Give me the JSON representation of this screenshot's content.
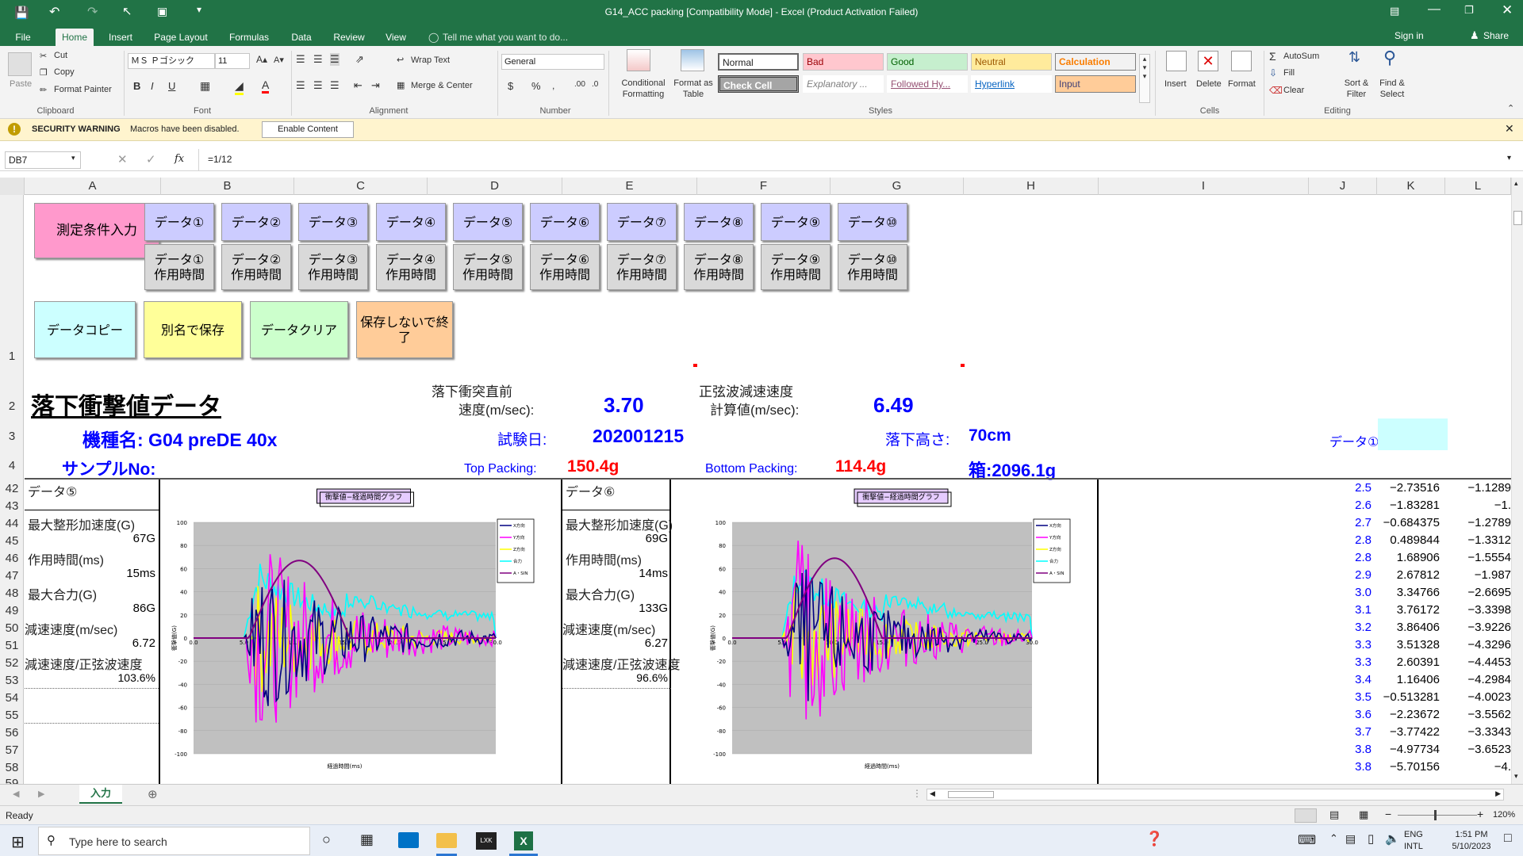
{
  "window": {
    "title": "G14_ACC packing  [Compatibility Mode] - Excel (Product Activation Failed)",
    "sign_in": "Sign in",
    "share": "Share"
  },
  "tabs": [
    "File",
    "Home",
    "Insert",
    "Page Layout",
    "Formulas",
    "Data",
    "Review",
    "View"
  ],
  "tell_me": "Tell me what you want to do...",
  "clipboard": {
    "paste": "Paste",
    "cut": "Cut",
    "copy": "Copy",
    "format_painter": "Format Painter",
    "label": "Clipboard"
  },
  "font": {
    "name": "ＭＳ Ｐゴシック",
    "size": "11",
    "label": "Font"
  },
  "alignment": {
    "wrap": "Wrap Text",
    "merge": "Merge & Center",
    "label": "Alignment"
  },
  "number": {
    "format": "General",
    "label": "Number"
  },
  "styles": {
    "cond": "Conditional Formatting",
    "table": "Format as Table",
    "normal": "Normal",
    "bad": "Bad",
    "good": "Good",
    "neutral": "Neutral",
    "calculation": "Calculation",
    "check": "Check Cell",
    "explanatory": "Explanatory ...",
    "followed": "Followed Hy...",
    "hyperlink": "Hyperlink",
    "input": "Input",
    "label": "Styles"
  },
  "cells": {
    "insert": "Insert",
    "delete": "Delete",
    "format": "Format",
    "label": "Cells"
  },
  "editing": {
    "autosum": "AutoSum",
    "fill": "Fill",
    "clear": "Clear",
    "sort": "Sort & Filter",
    "find": "Find & Select",
    "label": "Editing"
  },
  "security": {
    "title": "SECURITY WARNING",
    "message": "Macros have been disabled.",
    "button": "Enable Content"
  },
  "formula_bar": {
    "name_box": "DB7",
    "formula": "=1/12",
    "fx": "fx"
  },
  "columns": [
    "A",
    "B",
    "C",
    "D",
    "E",
    "F",
    "G",
    "H",
    "I",
    "J",
    "K",
    "L"
  ],
  "rows": [
    "1",
    "2",
    "3",
    "4",
    "42",
    "43",
    "44",
    "45",
    "46",
    "47",
    "48",
    "49",
    "50",
    "51",
    "52",
    "53",
    "54",
    "55",
    "56",
    "57",
    "58",
    "59"
  ],
  "buttons": {
    "cond_input": "測定条件入力",
    "data": [
      "データ①",
      "データ②",
      "データ③",
      "データ④",
      "データ⑤",
      "データ⑥",
      "データ⑦",
      "データ⑧",
      "データ⑨",
      "データ⑩"
    ],
    "act": [
      "データ①\n作用時間",
      "データ②\n作用時間",
      "データ③\n作用時間",
      "データ④\n作用時間",
      "データ⑤\n作用時間",
      "データ⑥\n作用時間",
      "データ⑦\n作用時間",
      "データ⑧\n作用時間",
      "データ⑨\n作用時間",
      "データ⑩\n作用時間"
    ],
    "copy": "データコピー",
    "saveas": "別名で保存",
    "clear": "データクリア",
    "quit": "保存しないで終了"
  },
  "header": {
    "title": "落下衝撃値データ",
    "vel_label1": "落下衝突直前",
    "vel_label2": "速度(m/sec):",
    "vel_value": "3.70",
    "sine_label1": "正弦波減速速度",
    "sine_label2": "計算値(m/sec):",
    "sine_value": "6.49",
    "model": "機種名:  G04 preDE   40x",
    "test_date_label": "試験日:",
    "test_date": "202001215",
    "drop_label": "落下高さ:",
    "drop_value": "70cm",
    "data_tag": "データ①",
    "sample": "サンプルNo:",
    "top_label": "Top Packing:",
    "top_value": "150.4g",
    "bottom_label": "Bottom Packing:",
    "bottom_value": "114.4g",
    "box": "箱:2096.1g"
  },
  "panels": [
    {
      "title": "データ⑤",
      "max_acc_label": "最大整形加速度(G)",
      "max_acc": "67G",
      "time_label": "作用時間(ms)",
      "time": "15ms",
      "max_force_label": "最大合力(G)",
      "max_force": "86G",
      "decel_label": "減速速度(m/sec)",
      "decel": "6.72",
      "ratio_label": "減速速度/正弦波速度",
      "ratio": "103.6%",
      "chart_title": "衝撃値−経過時間グラフ"
    },
    {
      "title": "データ⑥",
      "max_acc_label": "最大整形加速度(G)",
      "max_acc": "69G",
      "time_label": "作用時間(ms)",
      "time": "14ms",
      "max_force_label": "最大合力(G)",
      "max_force": "133G",
      "decel_label": "減速速度(m/sec)",
      "decel": "6.27",
      "ratio_label": "減速速度/正弦波速度",
      "ratio": "96.6%",
      "chart_title": "衝撃値−経過時間グラフ"
    }
  ],
  "right_values": [
    [
      "2.5",
      "−2.73516",
      "−1.1289"
    ],
    [
      "2.6",
      "−1.83281",
      "−1."
    ],
    [
      "2.7",
      "−0.684375",
      "−1.2789"
    ],
    [
      "2.8",
      "0.489844",
      "−1.3312"
    ],
    [
      "2.8",
      "1.68906",
      "−1.5554"
    ],
    [
      "2.9",
      "2.67812",
      "−1.987"
    ],
    [
      "3.0",
      "3.34766",
      "−2.6695"
    ],
    [
      "3.1",
      "3.76172",
      "−3.3398"
    ],
    [
      "3.2",
      "3.86406",
      "−3.9226"
    ],
    [
      "3.3",
      "3.51328",
      "−4.3296"
    ],
    [
      "3.3",
      "2.60391",
      "−4.4453"
    ],
    [
      "3.4",
      "1.16406",
      "−4.2984"
    ],
    [
      "3.5",
      "−0.513281",
      "−4.0023"
    ],
    [
      "3.6",
      "−2.23672",
      "−3.5562"
    ],
    [
      "3.7",
      "−3.77422",
      "−3.3343"
    ],
    [
      "3.8",
      "−4.97734",
      "−3.6523"
    ],
    [
      "3.8",
      "−5.70156",
      "−4."
    ]
  ],
  "sheet": {
    "tab": "入力",
    "status": "Ready",
    "zoom": "120%"
  },
  "taskbar": {
    "search": "Type here to search",
    "lang1": "ENG",
    "lang2": "INTL",
    "time": "1:51 PM",
    "date": "5/10/2023"
  },
  "chart_data": [
    {
      "type": "line",
      "title": "衝撃値−経過時間グラフ",
      "xlabel": "経過時間(ms)",
      "ylabel": "衝撃値(G)",
      "ylim": [
        -100,
        100
      ],
      "xlim": [
        0,
        300
      ],
      "yticks": [
        "100",
        "80",
        "60",
        "40",
        "20",
        "0",
        "-20",
        "-40",
        "-60",
        "-80",
        "-100"
      ],
      "xticks": [
        "0.0",
        "5.0",
        "10.0",
        "15.0",
        "20.0",
        "25.0",
        "30.0"
      ],
      "legend": [
        "X方向",
        "Y方向",
        "Z方向",
        "合力",
        "A・SIN"
      ],
      "colors": [
        "#000080",
        "#ff00ff",
        "#ffff00",
        "#00ffff",
        "#800080"
      ],
      "sine_peak": 67,
      "sine_start": 55,
      "sine_end": 155
    },
    {
      "type": "line",
      "title": "衝撃値−経過時間グラフ",
      "xlabel": "経過時間(ms)",
      "ylabel": "衝撃値(G)",
      "ylim": [
        -100,
        100
      ],
      "xlim": [
        0,
        300
      ],
      "yticks": [
        "100",
        "80",
        "60",
        "40",
        "20",
        "0",
        "-20",
        "-40",
        "-60",
        "-80",
        "-100"
      ],
      "xticks": [
        "0.0",
        "5.0",
        "10.0",
        "15.0",
        "20.0",
        "25.0",
        "30.0"
      ],
      "legend": [
        "X方向",
        "Y方向",
        "Z方向",
        "合力",
        "A・SIN"
      ],
      "colors": [
        "#000080",
        "#ff00ff",
        "#ffff00",
        "#00ffff",
        "#800080"
      ],
      "sine_peak": 69,
      "sine_start": 55,
      "sine_end": 150
    }
  ]
}
